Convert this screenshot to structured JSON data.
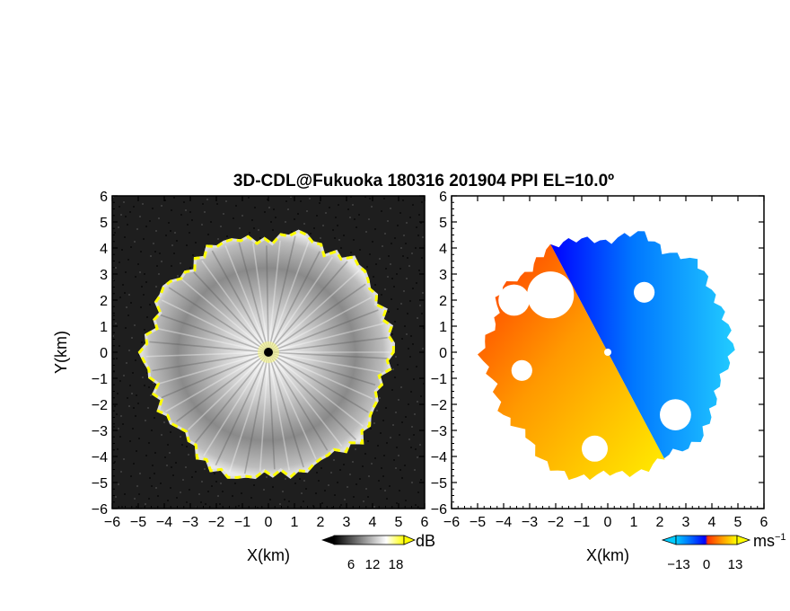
{
  "chart_data": [
    {
      "type": "heatmap",
      "title": "3D-CDL@Fukuoka 180316 201904 PPI EL=10.0º",
      "panel": "left",
      "xlabel": "X(km)",
      "ylabel": "Y(km)",
      "xlim": [
        -6,
        6
      ],
      "ylim": [
        -6,
        6
      ],
      "xticks": [
        "−6",
        "−5",
        "−4",
        "−3",
        "−2",
        "−1",
        "0",
        "1",
        "2",
        "3",
        "4",
        "5",
        "6"
      ],
      "yticks": [
        "−6",
        "−5",
        "−4",
        "−3",
        "−2",
        "−1",
        "0",
        "1",
        "2",
        "3",
        "4",
        "5",
        "6"
      ],
      "colorbar": {
        "label": "dB",
        "ticks": [
          "6",
          "12",
          "18"
        ],
        "range": [
          0,
          20
        ],
        "colors": [
          "#000000",
          "#ffffff",
          "#ffff00"
        ]
      },
      "background_color": "#1e1e1e",
      "echo_edge_km": [
        4.8,
        4.7,
        4.6,
        4.9,
        4.4,
        4.8,
        4.2,
        4.5,
        4.6,
        4.3,
        4.8,
        4.4,
        4.9,
        4.5,
        4.7,
        4.4,
        4.9,
        5.0,
        4.6,
        4.8,
        4.5,
        4.9,
        4.6,
        4.4
      ]
    },
    {
      "type": "heatmap",
      "panel": "right",
      "xlabel": "X(km)",
      "xlim": [
        -6,
        6
      ],
      "ylim": [
        -6,
        6
      ],
      "xticks": [
        "−6",
        "−5",
        "−4",
        "−3",
        "−2",
        "−1",
        "0",
        "1",
        "2",
        "3",
        "4",
        "5",
        "6"
      ],
      "colorbar": {
        "label": "ms−1",
        "ticks": [
          "−13",
          "0",
          "13"
        ],
        "range": [
          -13,
          13
        ],
        "colors": [
          "#00ccff",
          "#0066ff",
          "#0000ff",
          "#ff3300",
          "#ff9900",
          "#ffff00"
        ]
      },
      "velocity_sign_boundary_azimuth_deg": -62
    }
  ]
}
